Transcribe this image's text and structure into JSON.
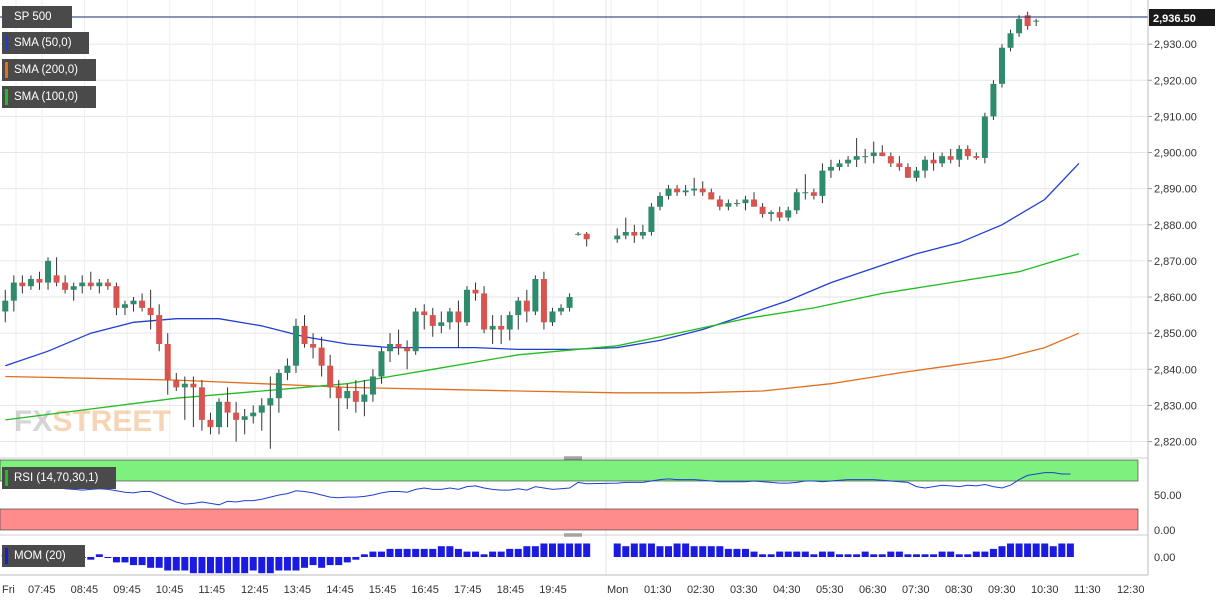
{
  "instrument": "SP 500",
  "indicators": {
    "sma50": {
      "label": "SMA (50,0)",
      "color": "#1f3fd4"
    },
    "sma200": {
      "label": "SMA (200,0)",
      "color": "#e0701e"
    },
    "sma100": {
      "label": "SMA (100,0)",
      "color": "#22bb22"
    }
  },
  "last_price_label": "2,936.50",
  "watermark": {
    "fx": "FX",
    "street": "STREET"
  },
  "colors": {
    "up": "#2e8b6e",
    "down": "#d9534f",
    "rsi_high_zone": "#7df07d",
    "rsi_low_zone": "#ff8c8c",
    "rsi_line": "#1f3fd4",
    "mom_bar": "#1a1ae0"
  },
  "rsi_panel": {
    "label": "RSI (14,70,30,1)",
    "ticks": [
      "50.00",
      "0.00"
    ]
  },
  "mom_panel": {
    "label": "MOM (20)",
    "ticks": [
      "0.00"
    ]
  },
  "chart_data": {
    "type": "candlestick",
    "title": "SP 500",
    "ylim": [
      2816,
      2940
    ],
    "y_ticks": [
      "2,820.00",
      "2,830.00",
      "2,840.00",
      "2,850.00",
      "2,860.00",
      "2,870.00",
      "2,880.00",
      "2,890.00",
      "2,900.00",
      "2,910.00",
      "2,920.00",
      "2,930.00"
    ],
    "x_tick_labels": [
      "Fri",
      "07:45",
      "08:45",
      "09:45",
      "10:45",
      "11:45",
      "12:45",
      "13:45",
      "14:45",
      "15:45",
      "16:45",
      "17:45",
      "18:45",
      "19:45",
      "Mon",
      "01:30",
      "02:30",
      "03:30",
      "04:30",
      "05:30",
      "06:30",
      "07:30",
      "08:30",
      "09:30",
      "10:30",
      "11:30",
      "12:30"
    ],
    "session_break_label": "Mon",
    "gap_after_index": 68,
    "candles": [
      [
        2856,
        2862,
        2853,
        2859
      ],
      [
        2859,
        2866,
        2856,
        2864
      ],
      [
        2864,
        2866,
        2861,
        2863
      ],
      [
        2863,
        2866,
        2862,
        2865
      ],
      [
        2865,
        2867,
        2862,
        2864
      ],
      [
        2864,
        2871,
        2862,
        2870
      ],
      [
        2866,
        2871,
        2863,
        2864
      ],
      [
        2864,
        2866,
        2861,
        2862
      ],
      [
        2862,
        2864,
        2859,
        2863
      ],
      [
        2863,
        2866,
        2861,
        2864
      ],
      [
        2864,
        2867,
        2862,
        2863
      ],
      [
        2863,
        2865,
        2861,
        2864
      ],
      [
        2864,
        2865,
        2862,
        2863
      ],
      [
        2863,
        2864,
        2855,
        2857
      ],
      [
        2857,
        2859,
        2855,
        2858
      ],
      [
        2858,
        2860,
        2856,
        2859
      ],
      [
        2859,
        2861,
        2856,
        2857
      ],
      [
        2857,
        2862,
        2851,
        2855
      ],
      [
        2855,
        2858,
        2845,
        2847
      ],
      [
        2847,
        2850,
        2833,
        2837
      ],
      [
        2837,
        2839,
        2834,
        2835
      ],
      [
        2835,
        2838,
        2826,
        2836
      ],
      [
        2836,
        2838,
        2824,
        2835
      ],
      [
        2835,
        2837,
        2823,
        2826
      ],
      [
        2826,
        2828,
        2822,
        2824
      ],
      [
        2824,
        2832,
        2822,
        2831
      ],
      [
        2831,
        2835,
        2824,
        2828
      ],
      [
        2828,
        2831,
        2820,
        2826
      ],
      [
        2826,
        2829,
        2822,
        2827
      ],
      [
        2827,
        2830,
        2825,
        2828
      ],
      [
        2828,
        2832,
        2823,
        2830
      ],
      [
        2830,
        2838,
        2818,
        2832
      ],
      [
        2832,
        2840,
        2828,
        2839
      ],
      [
        2839,
        2843,
        2837,
        2841
      ],
      [
        2841,
        2854,
        2839,
        2852
      ],
      [
        2852,
        2855,
        2846,
        2847
      ],
      [
        2847,
        2850,
        2843,
        2846
      ],
      [
        2846,
        2849,
        2838,
        2841
      ],
      [
        2841,
        2844,
        2832,
        2835
      ],
      [
        2835,
        2837,
        2823,
        2832
      ],
      [
        2832,
        2836,
        2829,
        2834
      ],
      [
        2834,
        2837,
        2828,
        2831
      ],
      [
        2831,
        2837,
        2827,
        2833
      ],
      [
        2833,
        2840,
        2831,
        2838
      ],
      [
        2838,
        2846,
        2836,
        2845
      ],
      [
        2845,
        2850,
        2842,
        2847
      ],
      [
        2847,
        2851,
        2844,
        2846
      ],
      [
        2846,
        2848,
        2840,
        2845
      ],
      [
        2845,
        2857,
        2844,
        2856
      ],
      [
        2856,
        2858,
        2851,
        2855
      ],
      [
        2855,
        2857,
        2849,
        2852
      ],
      [
        2852,
        2856,
        2850,
        2853
      ],
      [
        2853,
        2857,
        2851,
        2856
      ],
      [
        2856,
        2859,
        2846,
        2853
      ],
      [
        2853,
        2863,
        2852,
        2862
      ],
      [
        2862,
        2864,
        2859,
        2861
      ],
      [
        2861,
        2863,
        2850,
        2851
      ],
      [
        2851,
        2855,
        2847,
        2852
      ],
      [
        2852,
        2855,
        2847,
        2851
      ],
      [
        2851,
        2856,
        2848,
        2855
      ],
      [
        2855,
        2860,
        2851,
        2859
      ],
      [
        2859,
        2862,
        2853,
        2856
      ],
      [
        2856,
        2866,
        2855,
        2865
      ],
      [
        2865,
        2867,
        2851,
        2853
      ],
      [
        2853,
        2857,
        2852,
        2856
      ],
      [
        2856,
        2858,
        2855,
        2857
      ],
      [
        2857,
        2861,
        2856,
        2860
      ],
      [
        2877.5,
        2878,
        2877,
        2877.5
      ],
      [
        2877.5,
        2878,
        2874,
        2876
      ],
      [
        2876,
        2879,
        2875,
        2877
      ],
      [
        2877,
        2882,
        2876,
        2878
      ],
      [
        2878,
        2880,
        2875,
        2877
      ],
      [
        2877,
        2880,
        2876,
        2878
      ],
      [
        2878,
        2886,
        2877,
        2885
      ],
      [
        2885,
        2889,
        2884,
        2888
      ],
      [
        2888,
        2891,
        2887,
        2890
      ],
      [
        2890,
        2891,
        2888,
        2889
      ],
      [
        2889,
        2891,
        2888,
        2889.5
      ],
      [
        2889.5,
        2893,
        2888,
        2890
      ],
      [
        2890,
        2892,
        2888,
        2889
      ],
      [
        2889,
        2890,
        2887,
        2887
      ],
      [
        2887,
        2888,
        2884,
        2885
      ],
      [
        2885,
        2887,
        2884,
        2886
      ],
      [
        2886,
        2887,
        2885,
        2886
      ],
      [
        2886,
        2888,
        2884,
        2887
      ],
      [
        2887,
        2889,
        2885,
        2885
      ],
      [
        2885,
        2886,
        2882,
        2883
      ],
      [
        2883,
        2884,
        2881,
        2883.5
      ],
      [
        2883.5,
        2885,
        2881,
        2882
      ],
      [
        2882,
        2885,
        2881,
        2884
      ],
      [
        2884,
        2890,
        2883,
        2889
      ],
      [
        2889,
        2894,
        2887,
        2889
      ],
      [
        2889,
        2890,
        2887,
        2888
      ],
      [
        2888,
        2897,
        2886,
        2895
      ],
      [
        2895,
        2898,
        2893,
        2896
      ],
      [
        2896,
        2898,
        2895,
        2897
      ],
      [
        2897,
        2899,
        2896,
        2898
      ],
      [
        2898,
        2904,
        2896,
        2899
      ],
      [
        2899,
        2901,
        2897,
        2899
      ],
      [
        2899,
        2903,
        2897,
        2900
      ],
      [
        2900,
        2902,
        2899,
        2899
      ],
      [
        2899,
        2900,
        2896,
        2897
      ],
      [
        2897,
        2899,
        2895,
        2896
      ],
      [
        2896,
        2897,
        2893,
        2893
      ],
      [
        2893,
        2896,
        2892,
        2895
      ],
      [
        2895,
        2899,
        2893,
        2898
      ],
      [
        2898,
        2900,
        2895,
        2897
      ],
      [
        2897,
        2900,
        2896,
        2899
      ],
      [
        2899,
        2901,
        2897,
        2898
      ],
      [
        2898,
        2902,
        2896,
        2901
      ],
      [
        2901,
        2902,
        2898,
        2899
      ],
      [
        2899,
        2900,
        2898,
        2898.5
      ],
      [
        2898.5,
        2911,
        2897,
        2910
      ],
      [
        2910,
        2920,
        2909,
        2919
      ],
      [
        2919,
        2930,
        2918,
        2929
      ],
      [
        2929,
        2934,
        2928,
        2933
      ],
      [
        2933,
        2938,
        2932,
        2937
      ],
      [
        2938,
        2939,
        2934,
        2935
      ],
      [
        2936.5,
        2937,
        2935,
        2936.5
      ]
    ],
    "series": [
      {
        "name": "SMA (50,0)",
        "values": [
          [
            0,
            2841
          ],
          [
            5,
            2845
          ],
          [
            10,
            2850
          ],
          [
            15,
            2853
          ],
          [
            20,
            2854
          ],
          [
            25,
            2854
          ],
          [
            30,
            2852
          ],
          [
            35,
            2849
          ],
          [
            40,
            2847
          ],
          [
            45,
            2846
          ],
          [
            50,
            2846
          ],
          [
            55,
            2846
          ],
          [
            60,
            2845.5
          ],
          [
            66,
            2845.5
          ],
          [
            69,
            2846
          ],
          [
            74,
            2848
          ],
          [
            79,
            2851
          ],
          [
            84,
            2855
          ],
          [
            89,
            2859
          ],
          [
            94,
            2864
          ],
          [
            99,
            2868
          ],
          [
            104,
            2872
          ],
          [
            109,
            2875
          ],
          [
            114,
            2880
          ],
          [
            119,
            2887
          ],
          [
            123,
            2897
          ]
        ]
      },
      {
        "name": "SMA (200,0)",
        "values": [
          [
            0,
            2838
          ],
          [
            10,
            2837.5
          ],
          [
            20,
            2837
          ],
          [
            30,
            2836
          ],
          [
            40,
            2835
          ],
          [
            50,
            2834.5
          ],
          [
            60,
            2834
          ],
          [
            69,
            2833.5
          ],
          [
            78,
            2833.5
          ],
          [
            86,
            2834
          ],
          [
            94,
            2836
          ],
          [
            102,
            2839
          ],
          [
            108,
            2841
          ],
          [
            114,
            2843
          ],
          [
            119,
            2846
          ],
          [
            123,
            2850
          ]
        ]
      },
      {
        "name": "SMA (100,0)",
        "values": [
          [
            0,
            2826
          ],
          [
            10,
            2829
          ],
          [
            20,
            2832
          ],
          [
            30,
            2834
          ],
          [
            40,
            2836
          ],
          [
            50,
            2840
          ],
          [
            60,
            2844
          ],
          [
            69,
            2846.5
          ],
          [
            76,
            2850
          ],
          [
            84,
            2854
          ],
          [
            92,
            2857
          ],
          [
            100,
            2861
          ],
          [
            108,
            2864
          ],
          [
            116,
            2867
          ],
          [
            123,
            2872
          ]
        ]
      }
    ],
    "rsi": [
      60,
      60,
      61,
      60,
      60,
      62,
      61,
      59,
      58,
      57,
      58,
      59,
      58,
      56,
      54,
      53,
      55,
      55,
      50,
      45,
      40,
      37,
      38,
      40,
      38,
      36,
      41,
      40,
      42,
      42,
      44,
      47,
      50,
      52,
      56,
      55,
      53,
      50,
      47,
      46,
      47,
      47,
      48,
      50,
      53,
      55,
      55,
      54,
      58,
      60,
      58,
      58,
      60,
      58,
      62,
      63,
      60,
      58,
      57,
      57,
      59,
      57,
      62,
      60,
      58,
      59,
      60,
      68,
      66,
      67,
      68,
      68,
      68,
      70,
      72,
      73,
      72,
      72,
      72,
      71,
      70,
      69,
      69,
      69,
      69,
      70,
      69,
      68,
      67,
      67,
      68,
      70,
      70,
      69,
      70,
      71,
      72,
      72,
      72,
      72,
      71,
      70,
      69,
      68,
      62,
      60,
      62,
      64,
      63,
      62,
      64,
      63,
      65,
      62,
      60,
      64,
      72,
      78,
      80,
      82,
      82,
      80,
      80
    ],
    "mom": [
      1,
      1,
      0,
      -1,
      1,
      1,
      2,
      1,
      1,
      0,
      -1,
      1,
      0,
      -2,
      -2,
      -3,
      -3,
      -4,
      -4,
      -5,
      -5,
      -5,
      -6,
      -6,
      -6,
      -6,
      -6,
      -6,
      -6,
      -5,
      -6,
      -6,
      -5,
      -5,
      -5,
      -4,
      -3,
      -4,
      -3,
      -3,
      -2,
      -1,
      1,
      2,
      2,
      3,
      3,
      3,
      3,
      3,
      3,
      4,
      4,
      3,
      2,
      2,
      1,
      2,
      2,
      3,
      3,
      4,
      4,
      5,
      5,
      5,
      5,
      5,
      5,
      5,
      4,
      5,
      5,
      5,
      4,
      4,
      5,
      5,
      4,
      4,
      4,
      4,
      3,
      3,
      3,
      2,
      1,
      1,
      2,
      2,
      2,
      2,
      1,
      2,
      2,
      1,
      1,
      1,
      2,
      1,
      1,
      2,
      2,
      1,
      1,
      1,
      1,
      2,
      2,
      1,
      1,
      2,
      2,
      3,
      4,
      5,
      5,
      5,
      5,
      5,
      4,
      5,
      5
    ]
  }
}
